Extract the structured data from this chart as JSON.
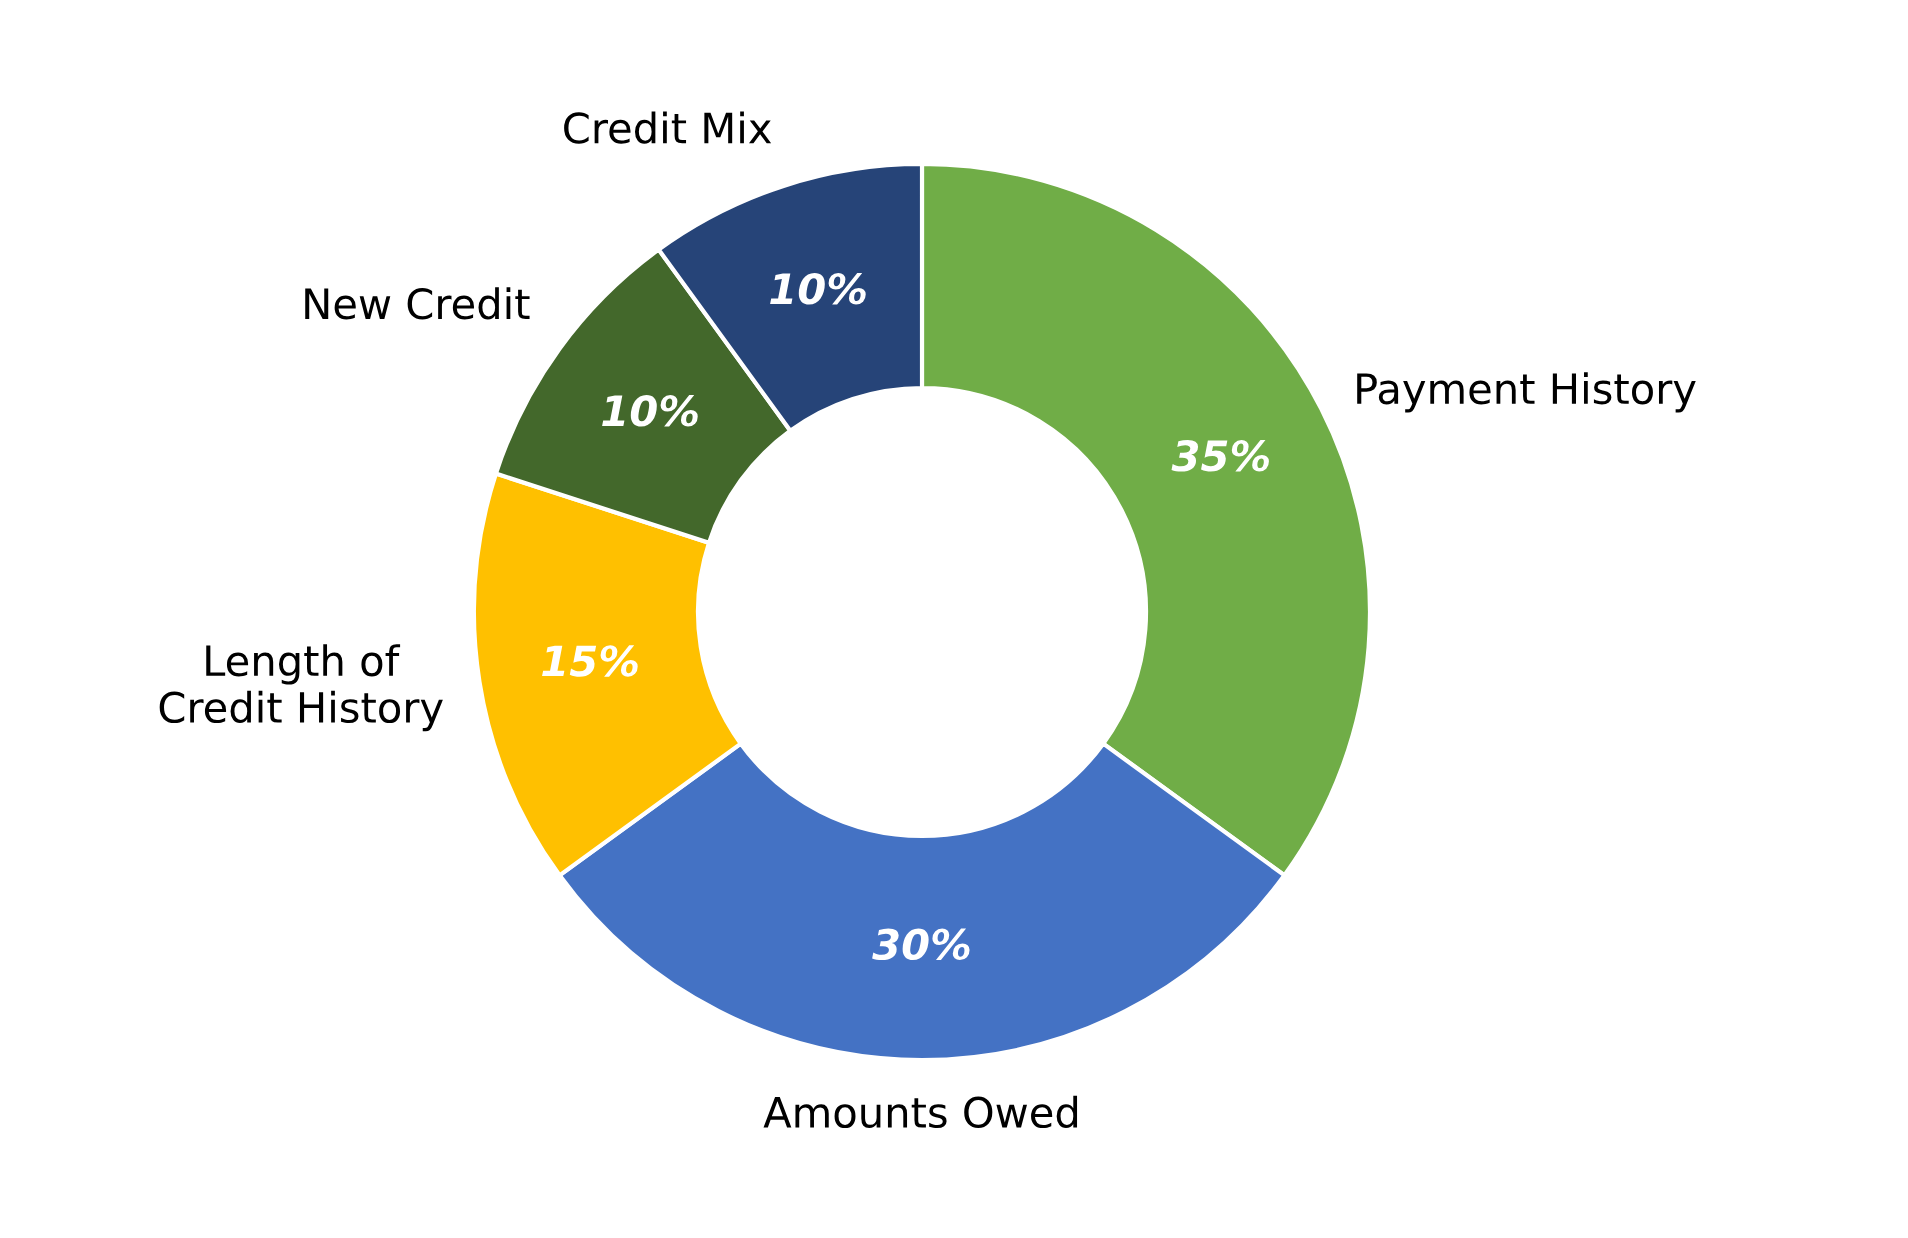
{
  "chart_data": {
    "type": "donut",
    "categories": [
      "Payment History",
      "Amounts Owed",
      "Length of\nCredit History",
      "New Credit",
      "Credit Mix"
    ],
    "values": [
      35,
      30,
      15,
      10,
      10
    ],
    "colors": [
      "#70ad47",
      "#4472c4",
      "#ffc000",
      "#43682b",
      "#264478"
    ],
    "value_labels": [
      "35%",
      "30%",
      "15%",
      "10%",
      "10%"
    ],
    "legend": false
  }
}
